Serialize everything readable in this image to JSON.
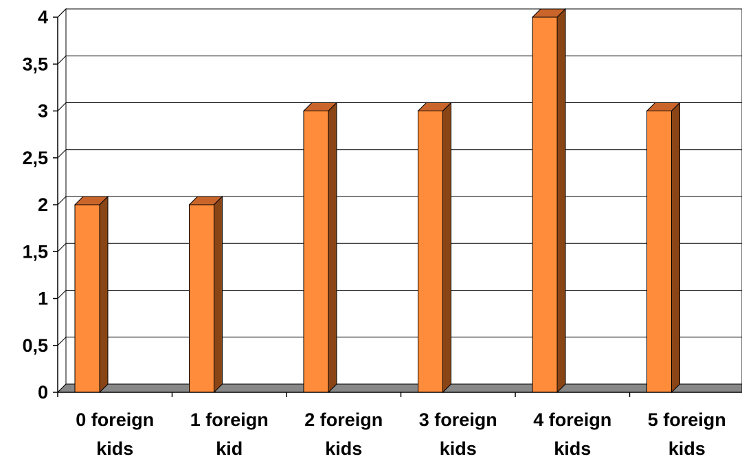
{
  "chart_data": {
    "type": "bar",
    "categories": [
      [
        "0 foreign",
        "kids"
      ],
      [
        "1 foreign",
        "kid"
      ],
      [
        "2 foreign",
        "kids"
      ],
      [
        "3 foreign",
        "kids"
      ],
      [
        "4 foreign",
        "kids"
      ],
      [
        "5 foreign",
        "kids"
      ]
    ],
    "values": [
      2,
      2,
      3,
      3,
      4,
      3
    ],
    "ylim": [
      0,
      4
    ],
    "yticks": [
      0,
      0.5,
      1,
      1.5,
      2,
      2.5,
      3,
      3.5,
      4
    ],
    "ytick_labels": [
      "0",
      "0,5",
      "1",
      "1,5",
      "2",
      "2,5",
      "3",
      "3,5",
      "4"
    ],
    "grid": true,
    "style": "3d-column",
    "colors": {
      "bar_front": "#ff8c3a",
      "bar_top": "#c9652a",
      "bar_side": "#8a4516",
      "floor": "#888888",
      "wall": "#ffffff",
      "grid": "#000000"
    }
  }
}
